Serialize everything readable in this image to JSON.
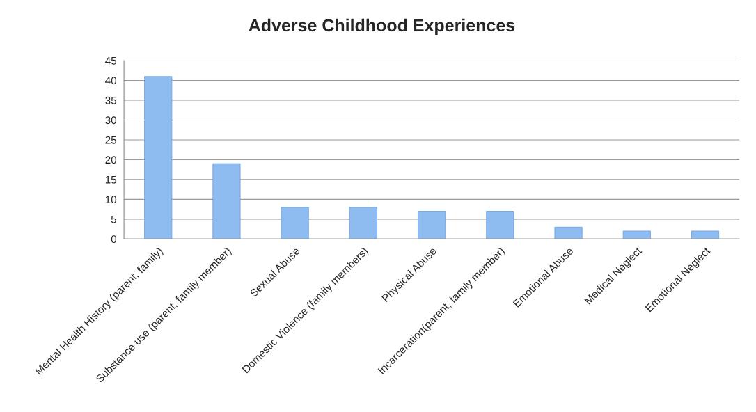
{
  "chart_data": {
    "type": "bar",
    "title": "Adverse Childhood Experiences",
    "categories": [
      "Mental Health History (parent, family)",
      "Substance use (parent, family member)",
      "Sexual Abuse",
      "Domestic Violence (family members)",
      "Physical Abuse",
      "Incarceration(parent, family member)",
      "Emotional Abuse",
      "Medical Neglect",
      "Emotional Neglect"
    ],
    "values": [
      41,
      19,
      8,
      8,
      7,
      7,
      3,
      2,
      2
    ],
    "color": "#8fbcf0",
    "ylim": [
      0,
      45
    ],
    "yticks": [
      0,
      5,
      10,
      15,
      20,
      25,
      30,
      35,
      40,
      45
    ],
    "grid": "y",
    "legend": false
  }
}
